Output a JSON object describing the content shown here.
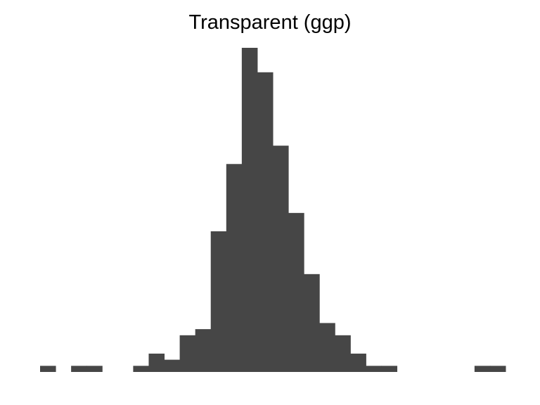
{
  "chart_data": {
    "type": "bar",
    "title": "Transparent (ggp)",
    "xlabel": "",
    "ylabel": "",
    "grid": false,
    "axes_visible": false,
    "bar_color": "#464646",
    "background": "#ffffff",
    "counts": [
      1,
      0,
      1,
      1,
      0,
      0,
      1,
      3,
      2,
      6,
      7,
      23,
      34,
      53,
      49,
      37,
      26,
      16,
      8,
      6,
      3,
      1,
      1,
      0,
      0,
      0,
      0,
      0,
      1,
      1
    ],
    "ylim": [
      0,
      53
    ]
  }
}
